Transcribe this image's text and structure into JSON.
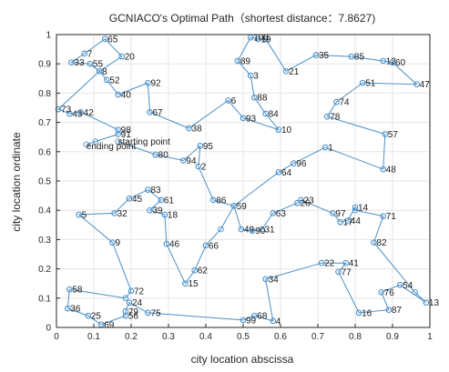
{
  "chart_data": {
    "type": "line",
    "title": "GCNIACO's Optimal Path（shortest distance：7.8627)",
    "xlabel": "city location abscissa",
    "ylabel": "city location ordinate",
    "xlim": [
      0,
      1
    ],
    "ylim": [
      0,
      1
    ],
    "xticks": [
      "0",
      "0.1",
      "0.2",
      "0.3",
      "0.4",
      "0.5",
      "0.6",
      "0.7",
      "0.8",
      "0.9",
      "1"
    ],
    "yticks": [
      "0",
      "0.1",
      "0.2",
      "0.3",
      "0.4",
      "0.5",
      "0.6",
      "0.7",
      "0.8",
      "0.9",
      "1"
    ],
    "grid": true,
    "colors": {
      "path": "#4a90c8",
      "marker": "#4a90c8",
      "grid": "#e6e6e6",
      "axis": "#262626"
    },
    "annotations": [
      {
        "text": "starting point",
        "x": 0.165,
        "y": 0.635
      },
      {
        "text": "ending point",
        "x": 0.08,
        "y": 0.62
      }
    ],
    "cities": [
      {
        "id": "1",
        "x": 0.72,
        "y": 0.615
      },
      {
        "id": "3",
        "x": 0.52,
        "y": 0.86
      },
      {
        "id": "4",
        "x": 0.58,
        "y": 0.022
      },
      {
        "id": "5",
        "x": 0.06,
        "y": 0.385
      },
      {
        "id": "6",
        "x": 0.46,
        "y": 0.775
      },
      {
        "id": "7",
        "x": 0.075,
        "y": 0.935
      },
      {
        "id": "8",
        "x": 0.115,
        "y": 0.875
      },
      {
        "id": "9",
        "x": 0.15,
        "y": 0.29
      },
      {
        "id": "10",
        "x": 0.595,
        "y": 0.675
      },
      {
        "id": "12",
        "x": 0.875,
        "y": 0.91
      },
      {
        "id": "13",
        "x": 0.99,
        "y": 0.085
      },
      {
        "id": "14",
        "x": 0.8,
        "y": 0.41
      },
      {
        "id": "15",
        "x": 0.345,
        "y": 0.15
      },
      {
        "id": "16",
        "x": 0.81,
        "y": 0.05
      },
      {
        "id": "17",
        "x": 0.76,
        "y": 0.36
      },
      {
        "id": "18",
        "x": 0.29,
        "y": 0.385
      },
      {
        "id": "19",
        "x": 0.54,
        "y": 0.985
      },
      {
        "id": "20",
        "x": 0.175,
        "y": 0.925
      },
      {
        "id": "21",
        "x": 0.615,
        "y": 0.875
      },
      {
        "id": "22",
        "x": 0.71,
        "y": 0.22
      },
      {
        "id": "23",
        "x": 0.655,
        "y": 0.435
      },
      {
        "id": "24",
        "x": 0.195,
        "y": 0.085
      },
      {
        "id": "25",
        "x": 0.085,
        "y": 0.04
      },
      {
        "id": "26",
        "x": 0.645,
        "y": 0.425
      },
      {
        "id": "31",
        "x": 0.55,
        "y": 0.335
      },
      {
        "id": "32",
        "x": 0.155,
        "y": 0.39
      },
      {
        "id": "33",
        "x": 0.04,
        "y": 0.905
      },
      {
        "id": "34",
        "x": 0.56,
        "y": 0.165
      },
      {
        "id": "35",
        "x": 0.695,
        "y": 0.93
      },
      {
        "id": "36",
        "x": 0.03,
        "y": 0.065
      },
      {
        "id": "38",
        "x": 0.355,
        "y": 0.68
      },
      {
        "id": "39",
        "x": 0.25,
        "y": 0.4
      },
      {
        "id": "40",
        "x": 0.165,
        "y": 0.795
      },
      {
        "id": "41",
        "x": 0.775,
        "y": 0.22
      },
      {
        "id": "42",
        "x": 0.065,
        "y": 0.735
      },
      {
        "id": "43",
        "x": 0.035,
        "y": 0.73
      },
      {
        "id": "44",
        "x": 0.78,
        "y": 0.365
      },
      {
        "id": "45",
        "x": 0.195,
        "y": 0.44
      },
      {
        "id": "46",
        "x": 0.295,
        "y": 0.285
      },
      {
        "id": "47",
        "x": 0.965,
        "y": 0.83
      },
      {
        "id": "48",
        "x": 0.875,
        "y": 0.54
      },
      {
        "id": "49",
        "x": 0.495,
        "y": 0.335
      },
      {
        "id": "51",
        "x": 0.82,
        "y": 0.835
      },
      {
        "id": "52",
        "x": 0.135,
        "y": 0.845
      },
      {
        "id": "54",
        "x": 0.92,
        "y": 0.145
      },
      {
        "id": "55",
        "x": 0.09,
        "y": 0.9
      },
      {
        "id": "56",
        "x": 0.185,
        "y": 0.04
      },
      {
        "id": "57",
        "x": 0.88,
        "y": 0.66
      },
      {
        "id": "58",
        "x": 0.035,
        "y": 0.13
      },
      {
        "id": "59",
        "x": 0.475,
        "y": 0.415
      },
      {
        "id": "60",
        "x": 0.9,
        "y": 0.905
      },
      {
        "id": "61",
        "x": 0.28,
        "y": 0.435
      },
      {
        "id": "62",
        "x": 0.37,
        "y": 0.195
      },
      {
        "id": "63",
        "x": 0.58,
        "y": 0.39
      },
      {
        "id": "64",
        "x": 0.595,
        "y": 0.53
      },
      {
        "id": "65",
        "x": 0.13,
        "y": 0.985
      },
      {
        "id": "66",
        "x": 0.4,
        "y": 0.28
      },
      {
        "id": "67",
        "x": 0.25,
        "y": 0.735
      },
      {
        "id": "68",
        "x": 0.53,
        "y": 0.04
      },
      {
        "id": "69",
        "x": 0.12,
        "y": 0.01
      },
      {
        "id": "71",
        "x": 0.875,
        "y": 0.38
      },
      {
        "id": "72",
        "x": 0.2,
        "y": 0.125
      },
      {
        "id": "73",
        "x": 0.005,
        "y": 0.745
      },
      {
        "id": "74",
        "x": 0.75,
        "y": 0.77
      },
      {
        "id": "75",
        "x": 0.245,
        "y": 0.05
      },
      {
        "id": "76",
        "x": 0.87,
        "y": 0.12
      },
      {
        "id": "77",
        "x": 0.755,
        "y": 0.19
      },
      {
        "id": "78",
        "x": 0.725,
        "y": 0.72
      },
      {
        "id": "79",
        "x": 0.185,
        "y": 0.055
      },
      {
        "id": "80",
        "x": 0.265,
        "y": 0.59
      },
      {
        "id": "82",
        "x": 0.85,
        "y": 0.29
      },
      {
        "id": "83",
        "x": 0.245,
        "y": 0.47
      },
      {
        "id": "84",
        "x": 0.56,
        "y": 0.73
      },
      {
        "id": "85",
        "x": 0.79,
        "y": 0.925
      },
      {
        "id": "86",
        "x": 0.42,
        "y": 0.435
      },
      {
        "id": "87",
        "x": 0.89,
        "y": 0.06
      },
      {
        "id": "88",
        "x": 0.53,
        "y": 0.785
      },
      {
        "id": "89",
        "x": 0.485,
        "y": 0.91
      },
      {
        "id": "90",
        "x": 0.525,
        "y": 0.33
      },
      {
        "id": "91",
        "x": 0.165,
        "y": 0.66
      },
      {
        "id": "92",
        "x": 0.245,
        "y": 0.835
      },
      {
        "id": "93",
        "x": 0.5,
        "y": 0.715
      },
      {
        "id": "94",
        "x": 0.34,
        "y": 0.57
      },
      {
        "id": "95",
        "x": 0.385,
        "y": 0.62
      },
      {
        "id": "96",
        "x": 0.635,
        "y": 0.56
      },
      {
        "id": "97",
        "x": 0.74,
        "y": 0.39
      },
      {
        "id": "98",
        "x": 0.165,
        "y": 0.675
      },
      {
        "id": "99",
        "x": 0.5,
        "y": 0.025
      },
      {
        "id": "100",
        "x": 0.52,
        "y": 0.99
      },
      {
        "id": "2",
        "x": 0.38,
        "y": 0.55
      }
    ],
    "path": [
      [
        0.165,
        0.635
      ],
      [
        0.265,
        0.59
      ],
      [
        0.34,
        0.57
      ],
      [
        0.385,
        0.62
      ],
      [
        0.38,
        0.55
      ],
      [
        0.42,
        0.435
      ],
      [
        0.475,
        0.415
      ],
      [
        0.495,
        0.335
      ],
      [
        0.525,
        0.33
      ],
      [
        0.55,
        0.335
      ],
      [
        0.58,
        0.39
      ],
      [
        0.645,
        0.425
      ],
      [
        0.655,
        0.435
      ],
      [
        0.74,
        0.39
      ],
      [
        0.76,
        0.36
      ],
      [
        0.78,
        0.365
      ],
      [
        0.8,
        0.41
      ],
      [
        0.8,
        0.4
      ],
      [
        0.875,
        0.38
      ],
      [
        0.85,
        0.29
      ],
      [
        0.96,
        0.12
      ],
      [
        0.99,
        0.085
      ],
      [
        0.92,
        0.145
      ],
      [
        0.87,
        0.12
      ],
      [
        0.89,
        0.06
      ],
      [
        0.81,
        0.05
      ],
      [
        0.755,
        0.19
      ],
      [
        0.775,
        0.22
      ],
      [
        0.71,
        0.22
      ],
      [
        0.56,
        0.165
      ],
      [
        0.58,
        0.022
      ],
      [
        0.53,
        0.04
      ],
      [
        0.5,
        0.025
      ],
      [
        0.245,
        0.05
      ],
      [
        0.195,
        0.085
      ],
      [
        0.185,
        0.055
      ],
      [
        0.185,
        0.04
      ],
      [
        0.12,
        0.01
      ],
      [
        0.085,
        0.04
      ],
      [
        0.03,
        0.065
      ],
      [
        0.035,
        0.13
      ],
      [
        0.185,
        0.1
      ],
      [
        0.2,
        0.125
      ],
      [
        0.15,
        0.29
      ],
      [
        0.06,
        0.385
      ],
      [
        0.155,
        0.39
      ],
      [
        0.195,
        0.44
      ],
      [
        0.245,
        0.47
      ],
      [
        0.28,
        0.435
      ],
      [
        0.25,
        0.4
      ],
      [
        0.29,
        0.385
      ],
      [
        0.295,
        0.285
      ],
      [
        0.345,
        0.15
      ],
      [
        0.37,
        0.195
      ],
      [
        0.4,
        0.28
      ],
      [
        0.44,
        0.335
      ],
      [
        0.475,
        0.415
      ],
      [
        0.595,
        0.53
      ],
      [
        0.635,
        0.56
      ],
      [
        0.72,
        0.615
      ],
      [
        0.875,
        0.54
      ],
      [
        0.88,
        0.66
      ],
      [
        0.725,
        0.72
      ],
      [
        0.75,
        0.77
      ],
      [
        0.82,
        0.835
      ],
      [
        0.965,
        0.83
      ],
      [
        0.9,
        0.905
      ],
      [
        0.875,
        0.91
      ],
      [
        0.79,
        0.925
      ],
      [
        0.695,
        0.93
      ],
      [
        0.615,
        0.875
      ],
      [
        0.56,
        0.985
      ],
      [
        0.54,
        0.985
      ],
      [
        0.52,
        0.99
      ],
      [
        0.485,
        0.91
      ],
      [
        0.52,
        0.86
      ],
      [
        0.53,
        0.785
      ],
      [
        0.56,
        0.73
      ],
      [
        0.595,
        0.675
      ],
      [
        0.5,
        0.715
      ],
      [
        0.46,
        0.775
      ],
      [
        0.355,
        0.68
      ],
      [
        0.25,
        0.735
      ],
      [
        0.245,
        0.835
      ],
      [
        0.165,
        0.795
      ],
      [
        0.135,
        0.845
      ],
      [
        0.115,
        0.875
      ],
      [
        0.09,
        0.9
      ],
      [
        0.04,
        0.905
      ],
      [
        0.075,
        0.935
      ],
      [
        0.13,
        0.985
      ],
      [
        0.175,
        0.925
      ],
      [
        0.115,
        0.875
      ],
      [
        0.005,
        0.745
      ],
      [
        0.035,
        0.73
      ],
      [
        0.065,
        0.735
      ],
      [
        0.165,
        0.675
      ],
      [
        0.165,
        0.66
      ],
      [
        0.105,
        0.635
      ],
      [
        0.08,
        0.625
      ]
    ]
  }
}
